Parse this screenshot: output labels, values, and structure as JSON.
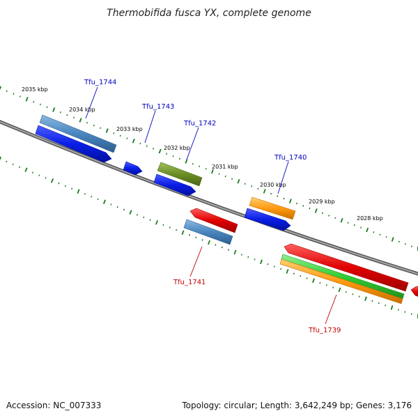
{
  "header": {
    "title": "Thermobifida fusca YX, complete genome"
  },
  "footer": {
    "accession": "Accession: NC_007333",
    "summary": "Topology: circular; Length: 3,642,249 bp; Genes: 3,176"
  },
  "colors": {
    "backbone": "#808080",
    "tick": "#1a7a1a",
    "cds_blue": "#0a1ee6",
    "cds_steel": "#4a86c0",
    "cds_olive": "#6b8e23",
    "cds_orange": "#ff9a10",
    "cds_red": "#e00000",
    "cds_green": "#33cc33",
    "label_forward": "#0000c0",
    "label_reverse": "#c00000"
  },
  "ticks": [
    "2035 kbp",
    "2034 kbp",
    "2033 kbp",
    "2032 kbp",
    "2031 kbp",
    "2030 kbp",
    "2029 kbp",
    "2028 kbp"
  ],
  "gene_labels": {
    "forward": [
      "Tfu_1744",
      "Tfu_1743",
      "Tfu_1742",
      "Tfu_1740"
    ],
    "reverse": [
      "Tfu_1741",
      "Tfu_1739"
    ]
  }
}
